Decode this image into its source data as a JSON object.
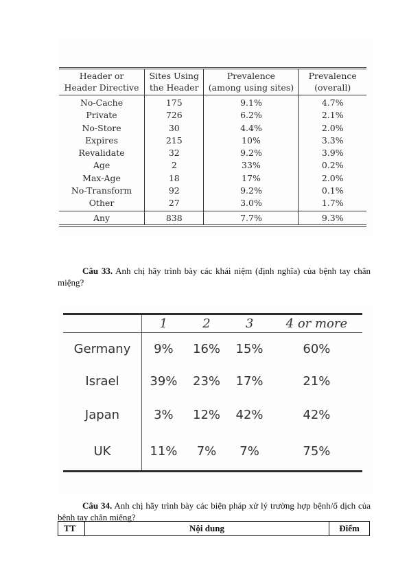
{
  "table1": {
    "headers": [
      [
        "Header or",
        "Header Directive"
      ],
      [
        "Sites Using",
        "the Header"
      ],
      [
        "Prevalence",
        "(among using sites)"
      ],
      [
        "Prevalence",
        "(overall)"
      ]
    ],
    "rows": [
      [
        "No-Cache",
        "175",
        "9.1%",
        "4.7%"
      ],
      [
        "Private",
        "726",
        "6.2%",
        "2.1%"
      ],
      [
        "No-Store",
        "30",
        "4.4%",
        "2.0%"
      ],
      [
        "Expires",
        "215",
        "10%",
        "3.3%"
      ],
      [
        "Revalidate",
        "32",
        "9.2%",
        "3.9%"
      ],
      [
        "Age",
        "2",
        "33%",
        "0.2%"
      ],
      [
        "Max-Age",
        "18",
        "17%",
        "2.0%"
      ],
      [
        "No-Transform",
        "92",
        "9.2%",
        "0.1%"
      ],
      [
        "Other",
        "27",
        "3.0%",
        "1.7%"
      ]
    ],
    "footer": [
      "Any",
      "838",
      "7.7%",
      "9.3%"
    ]
  },
  "question33": {
    "number": "Câu 33.",
    "text": " Anh chị hãy trình bày các khái niệm (định nghĩa) của bệnh tay chân miệng?"
  },
  "table2": {
    "columns": [
      "",
      "1",
      "2",
      "3",
      "4 or more"
    ],
    "rows": [
      [
        "Germany",
        "9%",
        "16%",
        "15%",
        "60%"
      ],
      [
        "Israel",
        "39%",
        "23%",
        "17%",
        "21%"
      ],
      [
        "Japan",
        "3%",
        "12%",
        "42%",
        "42%"
      ],
      [
        "UK",
        "11%",
        "7%",
        "7%",
        "75%"
      ]
    ]
  },
  "question34": {
    "number": "Câu 34.",
    "text": " Anh chị hãy trình bày các biện pháp xử lý trường hợp bệnh/ổ dịch của bệnh tay chân miệng?"
  },
  "answer_table": {
    "headers": [
      "TT",
      "Nội dung",
      "Điểm"
    ]
  }
}
